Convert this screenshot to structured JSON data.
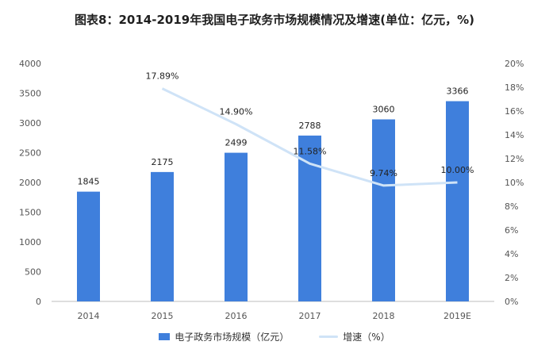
{
  "chart_data": {
    "type": "bar",
    "title": "图表8：2014-2019年我国电子政务市场规模情况及增速(单位：亿元，%)",
    "categories": [
      "2014",
      "2015",
      "2016",
      "2017",
      "2018",
      "2019E"
    ],
    "series": [
      {
        "name": "电子政务市场规模（亿元）",
        "type": "bar",
        "axis": "left",
        "values": [
          1845,
          2175,
          2499,
          2788,
          3060,
          3366
        ],
        "labels": [
          "1845",
          "2175",
          "2499",
          "2788",
          "3060",
          "3366"
        ],
        "color": "#3f7fdc"
      },
      {
        "name": "增速（%）",
        "type": "line",
        "axis": "right",
        "values": [
          null,
          17.89,
          14.9,
          11.58,
          9.74,
          10.0
        ],
        "labels": [
          "",
          "17.89%",
          "14.90%",
          "11.58%",
          "9.74%",
          "10.00%"
        ],
        "color": "#cfe3f7"
      }
    ],
    "y_left": {
      "min": 0,
      "max": 4000,
      "step": 500,
      "ticks": [
        "0",
        "500",
        "1000",
        "1500",
        "2000",
        "2500",
        "3000",
        "3500",
        "4000"
      ]
    },
    "y_right": {
      "min": 0,
      "max": 20,
      "step": 2,
      "ticks": [
        "0%",
        "2%",
        "4%",
        "6%",
        "8%",
        "10%",
        "12%",
        "14%",
        "16%",
        "18%",
        "20%"
      ]
    },
    "grid": false,
    "legend_position": "bottom"
  }
}
